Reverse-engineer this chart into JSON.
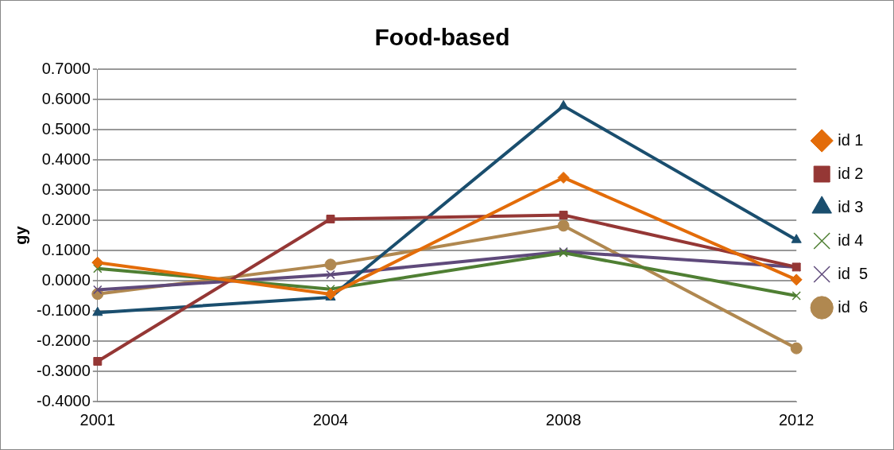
{
  "chart_data": {
    "type": "line",
    "title": "Food-based",
    "ylabel": "gy",
    "categories": [
      "2001",
      "2004",
      "2008",
      "2012"
    ],
    "series": [
      {
        "name": "id 1",
        "color": "#e36c09",
        "marker": "diamond",
        "values": [
          0.06,
          -0.045,
          0.341,
          0.003
        ]
      },
      {
        "name": "id 2",
        "color": "#953735",
        "marker": "square",
        "values": [
          -0.267,
          0.204,
          0.217,
          0.045
        ]
      },
      {
        "name": "id 3",
        "color": "#1a4e6e",
        "marker": "triangle",
        "values": [
          -0.106,
          -0.055,
          0.578,
          0.135
        ]
      },
      {
        "name": "id 4",
        "color": "#4f7f33",
        "marker": "cross",
        "values": [
          0.04,
          -0.028,
          0.092,
          -0.05
        ]
      },
      {
        "name": "id  5",
        "color": "#5f4a7b",
        "marker": "cross",
        "values": [
          -0.03,
          0.02,
          0.096,
          0.045
        ]
      },
      {
        "name": "id  6",
        "color": "#b08850",
        "marker": "circle",
        "values": [
          -0.044,
          0.053,
          0.182,
          -0.224
        ]
      }
    ],
    "ylim": [
      -0.4,
      0.7
    ],
    "yticks": [
      {
        "value": -0.4,
        "label": "-0.4000"
      },
      {
        "value": -0.3,
        "label": "-0.3000"
      },
      {
        "value": -0.2,
        "label": "-0.2000"
      },
      {
        "value": -0.1,
        "label": "-0.1000"
      },
      {
        "value": 0,
        "label": "0.0000"
      },
      {
        "value": 0.1,
        "label": "0.1000"
      },
      {
        "value": 0.2,
        "label": "0.2000"
      },
      {
        "value": 0.3,
        "label": "0.3000"
      },
      {
        "value": 0.4,
        "label": "0.4000"
      },
      {
        "value": 0.5,
        "label": "0.5000"
      },
      {
        "value": 0.6,
        "label": "0.6000"
      },
      {
        "value": 0.7,
        "label": "0.7000"
      }
    ],
    "grid": "y",
    "legend": "right"
  }
}
